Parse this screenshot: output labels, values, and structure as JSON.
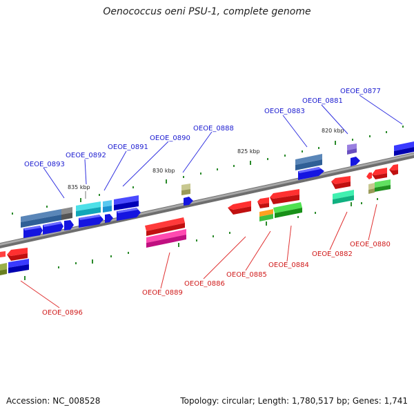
{
  "title": "Oenococcus oeni PSU-1, complete genome",
  "footer": {
    "accession": "Accession: NC_008528",
    "summary": "Topology: circular; Length: 1,780,517 bp; Genes: 1,741"
  },
  "scale_labels": [
    "835 kbp",
    "830 kbp",
    "825 kbp",
    "820 kbp"
  ],
  "gene_labels_top": [
    "OEOE_0893",
    "OEOE_0892",
    "OEOE_0891",
    "OEOE_0890",
    "OEOE_0888",
    "OEOE_0883",
    "OEOE_0881",
    "OEOE_0877"
  ],
  "gene_labels_bottom": [
    "OEOE_0896",
    "OEOE_0889",
    "OEOE_0886",
    "OEOE_0885",
    "OEOE_0884",
    "OEOE_0882",
    "OEOE_0880"
  ],
  "colors": {
    "backbone": "#8a8a8a",
    "top_label": "#1a1ad0",
    "bottom_label": "#d01a1a",
    "tick": "#2a8a2a",
    "forward_gene": "#1515e0",
    "reverse_gene": "#e01515"
  }
}
